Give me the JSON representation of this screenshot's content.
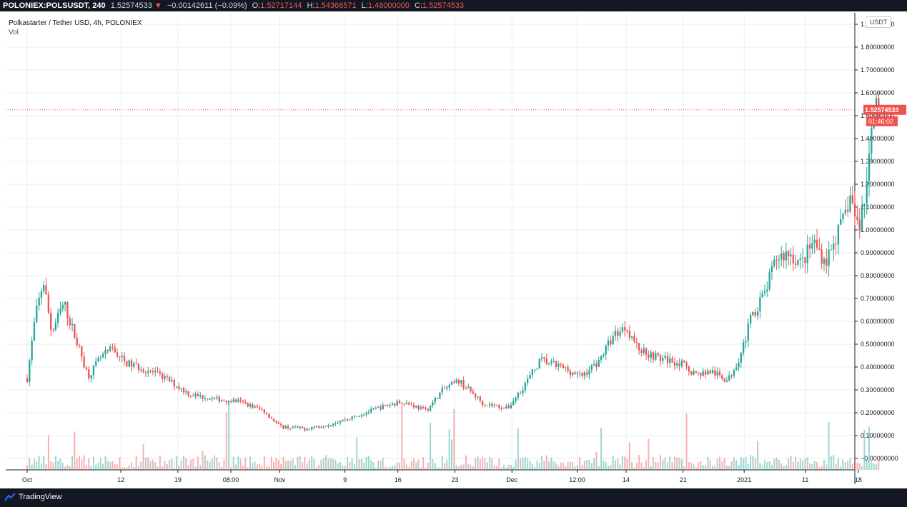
{
  "header": {
    "symbol": "POLONIEX:POLSUSDT, 240",
    "last": "1.52574533",
    "arrow": "▼",
    "change": "−0.00142611 (−0.09%)",
    "open_label": "O:",
    "open": "1.52717144",
    "high_label": "H:",
    "high": "1.54366571",
    "low_label": "L:",
    "low": "1.48000000",
    "close_label": "C:",
    "close": "1.52574533"
  },
  "legend": {
    "title": "Polkastarter / Tether USD, 4h, POLONIEX",
    "vol_label": "Vol"
  },
  "currency_label": "USDT",
  "price_tag": "1.52574533",
  "countdown_tag": "01:46:02",
  "brand": "TradingView",
  "colors": {
    "up": "#26a69a",
    "down": "#ef5350",
    "grid": "#e9eef3",
    "bar": "#131722"
  },
  "chart_data": {
    "type": "candlestick",
    "title": "Polkastarter / Tether USD, 4h, POLONIEX",
    "ylim": [
      -0.05,
      1.95
    ],
    "y_ticks": [
      "1.90000000",
      "1.80000000",
      "1.70000000",
      "1.60000000",
      "1.50000000",
      "1.40000000",
      "1.30000000",
      "1.20000000",
      "1.10000000",
      "1.00000000",
      "0.90000000",
      "0.80000000",
      "0.70000000",
      "0.60000000",
      "0.50000000",
      "0.40000000",
      "0.30000000",
      "0.20000000",
      "0.10000000",
      "−0.00000000"
    ],
    "y_tick_values": [
      1.9,
      1.8,
      1.7,
      1.6,
      1.5,
      1.4,
      1.3,
      1.2,
      1.1,
      1.0,
      0.9,
      0.8,
      0.7,
      0.6,
      0.5,
      0.4,
      0.3,
      0.2,
      0.1,
      0.0
    ],
    "x_ticks": [
      "Oct",
      "12",
      "19",
      "08:00",
      "Nov",
      "9",
      "16",
      "23",
      "Dec",
      "12:00",
      "14",
      "21",
      "2021",
      "11",
      "18"
    ],
    "x_tick_pos": [
      0.0,
      0.115,
      0.185,
      0.25,
      0.31,
      0.39,
      0.455,
      0.525,
      0.595,
      0.675,
      0.735,
      0.805,
      0.88,
      0.955,
      1.02
    ],
    "price_points": [
      [
        0.0,
        0.35
      ],
      [
        0.01,
        0.62
      ],
      [
        0.02,
        0.78
      ],
      [
        0.03,
        0.55
      ],
      [
        0.045,
        0.68
      ],
      [
        0.06,
        0.52
      ],
      [
        0.075,
        0.36
      ],
      [
        0.09,
        0.44
      ],
      [
        0.105,
        0.48
      ],
      [
        0.12,
        0.42
      ],
      [
        0.145,
        0.39
      ],
      [
        0.17,
        0.35
      ],
      [
        0.2,
        0.28
      ],
      [
        0.23,
        0.26
      ],
      [
        0.26,
        0.25
      ],
      [
        0.29,
        0.21
      ],
      [
        0.31,
        0.14
      ],
      [
        0.34,
        0.13
      ],
      [
        0.37,
        0.15
      ],
      [
        0.4,
        0.18
      ],
      [
        0.43,
        0.22
      ],
      [
        0.46,
        0.25
      ],
      [
        0.49,
        0.21
      ],
      [
        0.51,
        0.3
      ],
      [
        0.53,
        0.34
      ],
      [
        0.56,
        0.24
      ],
      [
        0.59,
        0.22
      ],
      [
        0.61,
        0.32
      ],
      [
        0.63,
        0.43
      ],
      [
        0.655,
        0.4
      ],
      [
        0.68,
        0.36
      ],
      [
        0.7,
        0.42
      ],
      [
        0.72,
        0.54
      ],
      [
        0.735,
        0.58
      ],
      [
        0.75,
        0.48
      ],
      [
        0.775,
        0.44
      ],
      [
        0.8,
        0.42
      ],
      [
        0.82,
        0.37
      ],
      [
        0.84,
        0.38
      ],
      [
        0.86,
        0.34
      ],
      [
        0.875,
        0.45
      ],
      [
        0.89,
        0.63
      ],
      [
        0.905,
        0.72
      ],
      [
        0.92,
        0.88
      ],
      [
        0.935,
        0.9
      ],
      [
        0.95,
        0.85
      ],
      [
        0.965,
        0.95
      ],
      [
        0.98,
        0.86
      ],
      [
        0.99,
        0.95
      ],
      [
        1.0,
        1.02
      ],
      [
        1.01,
        1.15
      ],
      [
        1.02,
        1.0
      ],
      [
        1.03,
        1.18
      ],
      [
        1.04,
        1.62
      ],
      [
        1.045,
        1.53
      ]
    ],
    "last_price": 1.52574533
  }
}
